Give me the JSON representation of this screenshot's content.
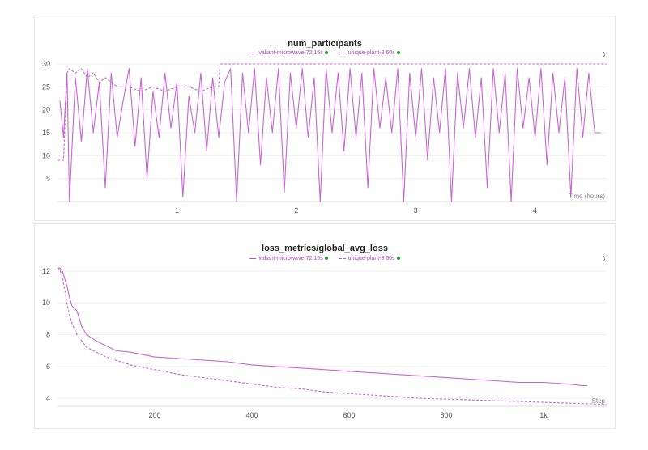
{
  "chart_data": [
    {
      "type": "line",
      "title": "num_participants",
      "xlabel": "Time (hours)",
      "ylabel": "",
      "xlim": [
        0,
        4.6
      ],
      "ylim": [
        0,
        30
      ],
      "x_ticks": [
        "1",
        "2",
        "3",
        "4"
      ],
      "y_ticks": [
        "5",
        "10",
        "15",
        "20",
        "25",
        "30"
      ],
      "legend": [
        "valiant-microwave-72 15s",
        "unique-plant-8 60s"
      ],
      "series": [
        {
          "name": "valiant-microwave-72 15s",
          "style": "solid",
          "x": [
            0.02,
            0.05,
            0.08,
            0.1,
            0.15,
            0.2,
            0.25,
            0.3,
            0.35,
            0.4,
            0.45,
            0.5,
            0.55,
            0.6,
            0.65,
            0.7,
            0.75,
            0.8,
            0.85,
            0.9,
            0.95,
            1.0,
            1.05,
            1.1,
            1.15,
            1.2,
            1.25,
            1.3,
            1.35,
            1.4,
            1.45,
            1.5,
            1.55,
            1.6,
            1.65,
            1.7,
            1.75,
            1.8,
            1.85,
            1.9,
            1.95,
            2.0,
            2.05,
            2.1,
            2.15,
            2.2,
            2.25,
            2.3,
            2.35,
            2.4,
            2.45,
            2.5,
            2.55,
            2.6,
            2.65,
            2.7,
            2.75,
            2.8,
            2.85,
            2.9,
            2.95,
            3.0,
            3.05,
            3.1,
            3.15,
            3.2,
            3.25,
            3.3,
            3.35,
            3.4,
            3.45,
            3.5,
            3.55,
            3.6,
            3.65,
            3.7,
            3.75,
            3.8,
            3.85,
            3.9,
            3.95,
            4.0,
            4.05,
            4.1,
            4.15,
            4.2,
            4.25,
            4.3,
            4.35,
            4.4,
            4.45,
            4.5,
            4.55
          ],
          "y": [
            22,
            14,
            28,
            0,
            27,
            13,
            29,
            15,
            26,
            3,
            28,
            14,
            22,
            29,
            12,
            27,
            5,
            24,
            14,
            28,
            16,
            26,
            1,
            23,
            15,
            28,
            11,
            27,
            14,
            26,
            29,
            0,
            28,
            15,
            29,
            8,
            27,
            15,
            29,
            2,
            28,
            16,
            29,
            14,
            27,
            0,
            29,
            15,
            28,
            11,
            29,
            14,
            28,
            3,
            29,
            16,
            27,
            15,
            29,
            0,
            28,
            14,
            29,
            9,
            27,
            15,
            29,
            0,
            28,
            16,
            29,
            14,
            27,
            3,
            29,
            15,
            28,
            0,
            29,
            16,
            27,
            14,
            29,
            8,
            28,
            15,
            27,
            1,
            29,
            14,
            28,
            15,
            15
          ]
        },
        {
          "name": "unique-plant-8 60s",
          "style": "dashed",
          "x": [
            0.0,
            0.05,
            0.08,
            0.1,
            0.15,
            0.2,
            0.25,
            0.3,
            0.35,
            0.4,
            0.5,
            0.6,
            0.7,
            0.8,
            0.9,
            1.0,
            1.1,
            1.2,
            1.3,
            1.35,
            1.36,
            1.5,
            1.7,
            1.9,
            2.1,
            2.3,
            2.5,
            2.7,
            2.9,
            3.1,
            3.3,
            3.5,
            3.7,
            3.9,
            4.1,
            4.3,
            4.5,
            4.6
          ],
          "y": [
            9,
            9,
            28,
            29,
            28,
            29,
            27,
            28,
            26,
            27,
            25,
            25,
            24,
            25,
            24,
            25,
            25,
            24,
            25,
            25,
            30,
            30,
            30,
            30,
            30,
            30,
            30,
            30,
            30,
            30,
            30,
            30,
            30,
            30,
            30,
            30,
            30,
            30
          ]
        }
      ]
    },
    {
      "type": "line",
      "title": "loss_metrics/global_avg_loss",
      "xlabel": "Step",
      "ylabel": "",
      "xlim": [
        0,
        1130
      ],
      "ylim": [
        3.5,
        12.3
      ],
      "x_ticks": [
        "200",
        "400",
        "600",
        "800",
        "1k"
      ],
      "y_ticks": [
        "4",
        "6",
        "8",
        "10",
        "12"
      ],
      "legend": [
        "valiant-microwave-72 15s",
        "unique-plant-8 60s"
      ],
      "series": [
        {
          "name": "valiant-microwave-72 15s",
          "style": "solid",
          "x": [
            0,
            5,
            10,
            15,
            20,
            25,
            30,
            40,
            50,
            60,
            70,
            80,
            100,
            120,
            150,
            200,
            250,
            300,
            350,
            400,
            450,
            500,
            550,
            600,
            650,
            700,
            750,
            800,
            850,
            900,
            950,
            1000,
            1050,
            1080,
            1090
          ],
          "y": [
            12.2,
            12.2,
            12.0,
            11.5,
            11.0,
            10.3,
            9.8,
            9.5,
            8.5,
            8.0,
            7.8,
            7.6,
            7.3,
            7.0,
            6.9,
            6.6,
            6.5,
            6.4,
            6.3,
            6.1,
            6.0,
            5.9,
            5.8,
            5.7,
            5.6,
            5.5,
            5.4,
            5.3,
            5.2,
            5.1,
            5.0,
            5.0,
            4.9,
            4.8,
            4.8
          ]
        },
        {
          "name": "unique-plant-8 60s",
          "style": "dashed",
          "x": [
            0,
            5,
            10,
            15,
            20,
            25,
            30,
            40,
            50,
            60,
            80,
            100,
            150,
            200,
            250,
            300,
            350,
            400,
            450,
            500,
            550,
            600,
            650,
            700,
            750,
            800,
            850,
            900,
            950,
            1000,
            1050,
            1100,
            1130
          ],
          "y": [
            12.2,
            12.1,
            11.6,
            10.8,
            9.9,
            9.2,
            8.7,
            8.0,
            7.6,
            7.2,
            6.9,
            6.6,
            6.1,
            5.8,
            5.5,
            5.3,
            5.1,
            4.9,
            4.7,
            4.6,
            4.4,
            4.3,
            4.2,
            4.1,
            4.0,
            3.95,
            3.9,
            3.85,
            3.8,
            3.75,
            3.7,
            3.65,
            3.6
          ]
        }
      ]
    }
  ],
  "colors": {
    "series": "#c766d3",
    "legend_dot": "#1aa51a",
    "grid": "#eeeeee",
    "text": "#555555"
  },
  "icons": {
    "expand": "expand-icon"
  }
}
